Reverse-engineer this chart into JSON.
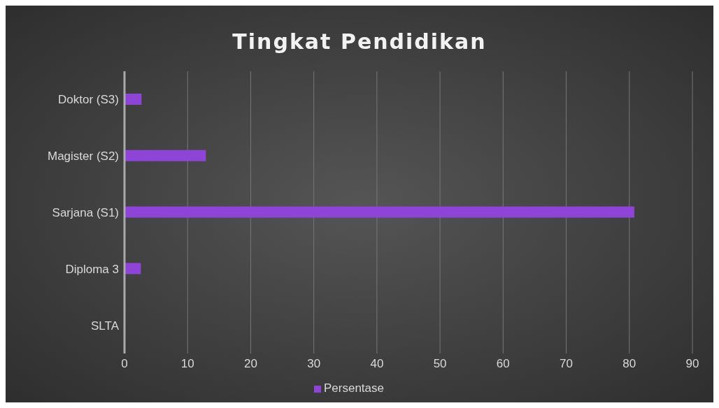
{
  "chart_data": {
    "type": "bar",
    "orientation": "horizontal",
    "title": "Tingkat Pendidikan",
    "categories": [
      "Doktor (S3)",
      "Magister (S2)",
      "Sarjana (S1)",
      "Diploma 3",
      "SLTA"
    ],
    "series": [
      {
        "name": "Persentase",
        "color": "#8e44d6",
        "values": [
          2.7,
          12.9,
          80.8,
          2.6,
          0
        ]
      }
    ],
    "xlim": [
      0,
      90
    ],
    "xticks": [
      0,
      10,
      20,
      30,
      40,
      50,
      60,
      70,
      80,
      90
    ],
    "grid": "x",
    "legend": "bottom"
  }
}
